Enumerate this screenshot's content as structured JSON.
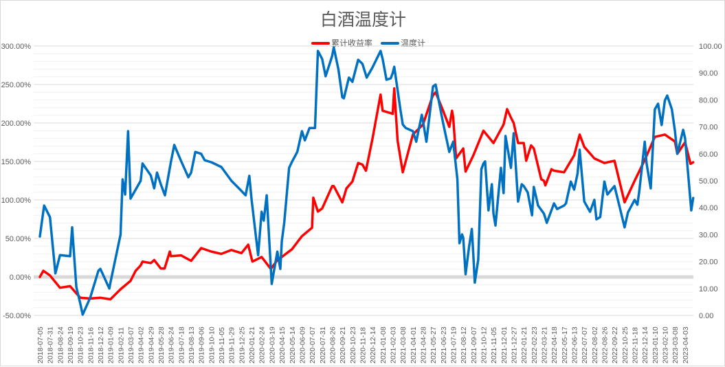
{
  "chart_data": {
    "type": "line",
    "title": "白酒温度计",
    "legend_position": "top",
    "grid": true,
    "colors": {
      "累计收益率": "#ff0000",
      "温度计": "#0070c0"
    },
    "x_tick_labels": [
      "2018-07-05",
      "2018-07-31",
      "2018-08-24",
      "2018-09-19",
      "2018-10-23",
      "2018-11-16",
      "2018-12-12",
      "2019-01-09",
      "2019-02-11",
      "2019-03-07",
      "2019-04-02",
      "2019-04-29",
      "2019-05-28",
      "2019-06-24",
      "2019-07-18",
      "2019-08-13",
      "2019-09-06",
      "2019-10-10",
      "2019-11-05",
      "2019-11-29",
      "2019-12-25",
      "2020-01-21",
      "2020-02-24",
      "2020-03-19",
      "2020-04-15",
      "2020-05-14",
      "2020-06-09",
      "2020-07-07",
      "2020-07-31",
      "2020-08-26",
      "2020-09-21",
      "2020-10-23",
      "2020-11-18",
      "2020-12-14",
      "2021-01-08",
      "2021-02-03",
      "2021-03-08",
      "2021-04-01",
      "2021-04-28",
      "2021-05-27",
      "2021-06-23",
      "2021-07-19",
      "2021-08-12",
      "2021-09-07",
      "2021-10-12",
      "2021-11-05",
      "2021-12-01",
      "2021-12-27",
      "2022-01-21",
      "2022-02-23",
      "2022-03-21",
      "2022-04-18",
      "2022-05-17",
      "2022-06-13",
      "2022-07-07",
      "2022-08-02",
      "2022-08-26",
      "2022-09-22",
      "2022-10-25",
      "2022-11-18",
      "2022-12-14",
      "2023-01-10",
      "2023-02-10",
      "2023-03-08",
      "2023-04-03"
    ],
    "y_left": {
      "range": [
        -50,
        300
      ],
      "unit": "%",
      "tick_labels": [
        "300.00%",
        "250.00%",
        "200.00%",
        "150.00%",
        "100.00%",
        "50.00%",
        "0.00%",
        "-50.00%"
      ]
    },
    "y_right": {
      "range": [
        0,
        100
      ],
      "tick_labels": [
        "100.00",
        "90.00",
        "80.00",
        "70.00",
        "60.00",
        "50.00",
        "40.00",
        "30.00",
        "20.00",
        "10.00",
        "0.00"
      ]
    },
    "series": [
      {
        "name": "累计收益率",
        "axis": "left",
        "points": [
          [
            "2018-07-05",
            0
          ],
          [
            "2018-07-14",
            8
          ],
          [
            "2018-07-31",
            2
          ],
          [
            "2018-08-24",
            -14
          ],
          [
            "2018-09-19",
            -12
          ],
          [
            "2018-10-23",
            -27
          ],
          [
            "2018-11-16",
            -28
          ],
          [
            "2018-12-12",
            -27
          ],
          [
            "2019-01-09",
            -29
          ],
          [
            "2019-02-11",
            -16
          ],
          [
            "2019-03-07",
            -5
          ],
          [
            "2019-03-20",
            8
          ],
          [
            "2019-04-02",
            15
          ],
          [
            "2019-04-07",
            20
          ],
          [
            "2019-04-29",
            18
          ],
          [
            "2019-05-09",
            22
          ],
          [
            "2019-05-28",
            11
          ],
          [
            "2019-06-07",
            11
          ],
          [
            "2019-06-21",
            33
          ],
          [
            "2019-06-24",
            27
          ],
          [
            "2019-07-18",
            28
          ],
          [
            "2019-08-13",
            21
          ],
          [
            "2019-09-06",
            37.5
          ],
          [
            "2019-10-10",
            33
          ],
          [
            "2019-11-05",
            30
          ],
          [
            "2019-11-29",
            35
          ],
          [
            "2019-12-25",
            31
          ],
          [
            "2020-01-12",
            42
          ],
          [
            "2020-01-21",
            24
          ],
          [
            "2020-01-24",
            20
          ],
          [
            "2020-02-24",
            26
          ],
          [
            "2020-03-16",
            11
          ],
          [
            "2020-03-19",
            12
          ],
          [
            "2020-04-03",
            22
          ],
          [
            "2020-04-15",
            26
          ],
          [
            "2020-05-14",
            36
          ],
          [
            "2020-06-09",
            53
          ],
          [
            "2020-07-07",
            64
          ],
          [
            "2020-07-10",
            103
          ],
          [
            "2020-07-21",
            85
          ],
          [
            "2020-07-31",
            89
          ],
          [
            "2020-08-26",
            118
          ],
          [
            "2020-08-30",
            118
          ],
          [
            "2020-09-21",
            97
          ],
          [
            "2020-10-04",
            115
          ],
          [
            "2020-10-23",
            124
          ],
          [
            "2020-11-07",
            148
          ],
          [
            "2020-11-18",
            146
          ],
          [
            "2020-11-27",
            138
          ],
          [
            "2020-12-14",
            180
          ],
          [
            "2021-01-03",
            237
          ],
          [
            "2021-01-08",
            216
          ],
          [
            "2021-02-03",
            212
          ],
          [
            "2021-02-08",
            245
          ],
          [
            "2021-02-19",
            177
          ],
          [
            "2021-03-08",
            136
          ],
          [
            "2021-04-01",
            185
          ],
          [
            "2021-04-28",
            198
          ],
          [
            "2021-05-25",
            234
          ],
          [
            "2021-05-27",
            236
          ],
          [
            "2021-06-03",
            240
          ],
          [
            "2021-06-23",
            216
          ],
          [
            "2021-07-09",
            195
          ],
          [
            "2021-07-16",
            216
          ],
          [
            "2021-07-19",
            207
          ],
          [
            "2021-07-26",
            154
          ],
          [
            "2021-08-12",
            167
          ],
          [
            "2021-08-18",
            137
          ],
          [
            "2021-09-07",
            158
          ],
          [
            "2021-10-12",
            190
          ],
          [
            "2021-11-05",
            174
          ],
          [
            "2021-12-01",
            198
          ],
          [
            "2021-12-10",
            218
          ],
          [
            "2021-12-20",
            207
          ],
          [
            "2021-12-27",
            200
          ],
          [
            "2022-01-07",
            174
          ],
          [
            "2022-01-21",
            174
          ],
          [
            "2022-01-29",
            151
          ],
          [
            "2022-02-14",
            171
          ],
          [
            "2022-02-23",
            167
          ],
          [
            "2022-03-14",
            127
          ],
          [
            "2022-03-21",
            125
          ],
          [
            "2022-03-25",
            119
          ],
          [
            "2022-04-11",
            140
          ],
          [
            "2022-04-18",
            138
          ],
          [
            "2022-05-17",
            136
          ],
          [
            "2022-06-13",
            158
          ],
          [
            "2022-06-26",
            185
          ],
          [
            "2022-07-07",
            169
          ],
          [
            "2022-08-02",
            154
          ],
          [
            "2022-08-26",
            148
          ],
          [
            "2022-09-22",
            151
          ],
          [
            "2022-10-25",
            97
          ],
          [
            "2022-11-18",
            125
          ],
          [
            "2022-12-14",
            152
          ],
          [
            "2023-01-10",
            182
          ],
          [
            "2023-02-10",
            185
          ],
          [
            "2023-03-08",
            176
          ],
          [
            "2023-03-14",
            160
          ],
          [
            "2023-04-03",
            175
          ],
          [
            "2023-04-17",
            147
          ],
          [
            "2023-04-24",
            149
          ]
        ]
      },
      {
        "name": "温度计",
        "axis": "right",
        "points": [
          [
            "2018-07-05",
            29.3
          ],
          [
            "2018-07-16",
            40.8
          ],
          [
            "2018-07-31",
            36.5
          ],
          [
            "2018-08-13",
            15.6
          ],
          [
            "2018-08-24",
            22.4
          ],
          [
            "2018-09-19",
            22
          ],
          [
            "2018-09-26",
            32.7
          ],
          [
            "2018-10-10",
            10.5
          ],
          [
            "2018-10-23",
            4.6
          ],
          [
            "2018-10-29",
            0.3
          ],
          [
            "2018-11-16",
            6.6
          ],
          [
            "2018-12-07",
            16.6
          ],
          [
            "2018-12-12",
            17.3
          ],
          [
            "2019-01-06",
            10
          ],
          [
            "2019-01-09",
            12.2
          ],
          [
            "2019-02-11",
            30
          ],
          [
            "2019-02-16",
            50.5
          ],
          [
            "2019-02-22",
            44.9
          ],
          [
            "2019-03-01",
            68.4
          ],
          [
            "2019-03-07",
            43.4
          ],
          [
            "2019-04-02",
            50
          ],
          [
            "2019-04-07",
            56.4
          ],
          [
            "2019-04-29",
            52
          ],
          [
            "2019-05-09",
            47.2
          ],
          [
            "2019-05-17",
            53
          ],
          [
            "2019-05-28",
            48.7
          ],
          [
            "2019-06-08",
            44.6
          ],
          [
            "2019-06-24",
            57
          ],
          [
            "2019-07-02",
            63.3
          ],
          [
            "2019-07-18",
            57.4
          ],
          [
            "2019-08-06",
            51.3
          ],
          [
            "2019-08-13",
            53
          ],
          [
            "2019-08-23",
            60.7
          ],
          [
            "2019-09-06",
            60
          ],
          [
            "2019-09-18",
            57.6
          ],
          [
            "2019-10-10",
            56.9
          ],
          [
            "2019-11-05",
            55.1
          ],
          [
            "2019-11-29",
            50
          ],
          [
            "2019-12-25",
            46.2
          ],
          [
            "2020-01-05",
            44.6
          ],
          [
            "2020-01-15",
            51.8
          ],
          [
            "2020-01-21",
            43
          ],
          [
            "2020-02-12",
            22.4
          ],
          [
            "2020-02-24",
            38.5
          ],
          [
            "2020-02-29",
            35.2
          ],
          [
            "2020-03-07",
            44.6
          ],
          [
            "2020-03-19",
            11.7
          ],
          [
            "2020-04-03",
            23.7
          ],
          [
            "2020-04-11",
            17.3
          ],
          [
            "2020-04-15",
            27.6
          ],
          [
            "2020-04-22",
            34.4
          ],
          [
            "2020-05-06",
            54.8
          ],
          [
            "2020-05-14",
            57
          ],
          [
            "2020-05-28",
            60.7
          ],
          [
            "2020-06-09",
            68.4
          ],
          [
            "2020-06-17",
            65
          ],
          [
            "2020-06-30",
            69.6
          ],
          [
            "2020-07-07",
            69.6
          ],
          [
            "2020-07-14",
            69.6
          ],
          [
            "2020-07-21",
            98.2
          ],
          [
            "2020-07-31",
            95.2
          ],
          [
            "2020-08-09",
            88.8
          ],
          [
            "2020-08-22",
            94.6
          ],
          [
            "2020-08-26",
            96.4
          ],
          [
            "2020-08-30",
            99.5
          ],
          [
            "2020-09-11",
            91.3
          ],
          [
            "2020-09-21",
            81
          ],
          [
            "2020-09-26",
            80.6
          ],
          [
            "2020-10-12",
            88.3
          ],
          [
            "2020-10-23",
            86.7
          ],
          [
            "2020-11-07",
            94.9
          ],
          [
            "2020-11-18",
            93.4
          ],
          [
            "2020-11-29",
            88.3
          ],
          [
            "2020-12-14",
            92.1
          ],
          [
            "2021-01-03",
            98.2
          ],
          [
            "2021-01-08",
            95.2
          ],
          [
            "2021-01-18",
            87.5
          ],
          [
            "2021-01-29",
            88
          ],
          [
            "2021-02-03",
            90
          ],
          [
            "2021-02-08",
            92.3
          ],
          [
            "2021-02-28",
            76.5
          ],
          [
            "2021-03-08",
            70.9
          ],
          [
            "2021-03-15",
            69.6
          ],
          [
            "2021-04-01",
            68.4
          ],
          [
            "2021-04-10",
            64.5
          ],
          [
            "2021-04-25",
            74.5
          ],
          [
            "2021-04-28",
            72.2
          ],
          [
            "2021-05-08",
            64.5
          ],
          [
            "2021-05-27",
            85
          ],
          [
            "2021-06-03",
            85.7
          ],
          [
            "2021-06-23",
            71.4
          ],
          [
            "2021-07-09",
            60.7
          ],
          [
            "2021-07-19",
            64.5
          ],
          [
            "2021-07-29",
            50.5
          ],
          [
            "2021-08-03",
            26.8
          ],
          [
            "2021-08-09",
            30.1
          ],
          [
            "2021-08-12",
            28.8
          ],
          [
            "2021-08-18",
            15.3
          ],
          [
            "2021-08-27",
            25.5
          ],
          [
            "2021-09-03",
            32.1
          ],
          [
            "2021-09-07",
            22.4
          ],
          [
            "2021-09-12",
            12.2
          ],
          [
            "2021-09-24",
            20.7
          ],
          [
            "2021-10-05",
            54.3
          ],
          [
            "2021-10-12",
            56.4
          ],
          [
            "2021-10-16",
            57.2
          ],
          [
            "2021-10-24",
            39
          ],
          [
            "2021-11-01",
            48.7
          ],
          [
            "2021-11-05",
            37.8
          ],
          [
            "2021-11-10",
            33.4
          ],
          [
            "2021-11-24",
            54.8
          ],
          [
            "2021-12-01",
            45.4
          ],
          [
            "2021-12-06",
            66.6
          ],
          [
            "2021-12-20",
            54.8
          ],
          [
            "2021-12-27",
            67.6
          ],
          [
            "2022-01-07",
            42.3
          ],
          [
            "2022-01-16",
            48.7
          ],
          [
            "2022-01-21",
            48
          ],
          [
            "2022-02-03",
            45.7
          ],
          [
            "2022-02-17",
            37.2
          ],
          [
            "2022-02-23",
            47.7
          ],
          [
            "2022-03-06",
            40.8
          ],
          [
            "2022-03-21",
            37.8
          ],
          [
            "2022-03-29",
            34.4
          ],
          [
            "2022-04-18",
            41.6
          ],
          [
            "2022-04-27",
            39.5
          ],
          [
            "2022-05-17",
            40.8
          ],
          [
            "2022-05-22",
            41.6
          ],
          [
            "2022-06-04",
            49.7
          ],
          [
            "2022-06-13",
            46.7
          ],
          [
            "2022-06-21",
            52.6
          ],
          [
            "2022-06-26",
            61.5
          ],
          [
            "2022-07-07",
            42.3
          ],
          [
            "2022-07-22",
            38.5
          ],
          [
            "2022-08-02",
            42.9
          ],
          [
            "2022-08-07",
            35.7
          ],
          [
            "2022-08-16",
            36.5
          ],
          [
            "2022-08-26",
            49.7
          ],
          [
            "2022-09-03",
            44.9
          ],
          [
            "2022-09-22",
            48
          ],
          [
            "2022-10-07",
            41.1
          ],
          [
            "2022-10-25",
            32.7
          ],
          [
            "2022-11-02",
            38.3
          ],
          [
            "2022-11-18",
            42.9
          ],
          [
            "2022-11-25",
            41.1
          ],
          [
            "2022-11-30",
            46.2
          ],
          [
            "2022-12-14",
            64.5
          ],
          [
            "2022-12-19",
            56.4
          ],
          [
            "2022-12-30",
            47.2
          ],
          [
            "2023-01-10",
            76.5
          ],
          [
            "2023-01-20",
            78.6
          ],
          [
            "2023-01-31",
            70.7
          ],
          [
            "2023-02-10",
            79.8
          ],
          [
            "2023-02-16",
            81.6
          ],
          [
            "2023-02-28",
            76.5
          ],
          [
            "2023-03-08",
            68.4
          ],
          [
            "2023-03-14",
            60
          ],
          [
            "2023-03-29",
            68.9
          ],
          [
            "2023-04-03",
            65.8
          ],
          [
            "2023-04-19",
            39
          ],
          [
            "2023-04-24",
            43.6
          ]
        ]
      }
    ]
  }
}
